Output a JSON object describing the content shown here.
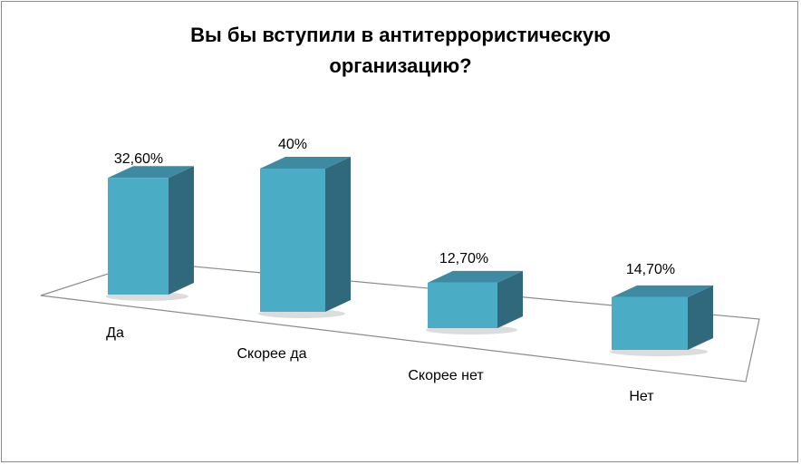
{
  "chart_data": {
    "type": "bar",
    "title_lines": [
      "Вы бы вступили в антитеррористическую",
      "организацию?"
    ],
    "categories": [
      "Да",
      "Скорее да",
      "Скорее нет",
      "Нет"
    ],
    "values": [
      32.6,
      40,
      12.7,
      14.7
    ],
    "data_labels": [
      "32,60%",
      "40%",
      "12,70%",
      "14,70%"
    ],
    "xlabel": "",
    "ylabel": "",
    "ylim": [
      0,
      45
    ],
    "grid": false,
    "legend": "none",
    "style": "3d-column",
    "colors": {
      "front": "#4bacc6",
      "side": "#31697c",
      "top": "#3d8aa2",
      "floor": "#ffffff",
      "floor_edge": "#8c8c8c"
    }
  }
}
